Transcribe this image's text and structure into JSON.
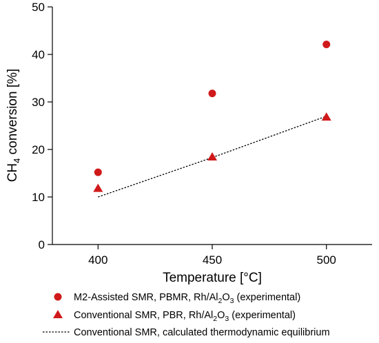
{
  "chart_data": {
    "type": "scatter",
    "xlabel": "Temperature [°C]",
    "ylabel": {
      "base": "CH",
      "sub": "4",
      "rest": " conversion [%]"
    },
    "xlim": [
      380,
      520
    ],
    "ylim": [
      0,
      50
    ],
    "x_ticks": [
      400,
      450,
      500
    ],
    "y_ticks": [
      0,
      10,
      20,
      30,
      40,
      50
    ],
    "grid": false,
    "legend_position": "bottom",
    "colors": {
      "marker": "#d0191b",
      "line": "#000000"
    },
    "series": [
      {
        "name": "M2-Assisted SMR, PBMR, Rh/Al2O3 (experimental)",
        "marker": "circle",
        "x": [
          400,
          450,
          500
        ],
        "y": [
          15.2,
          31.8,
          42.1
        ]
      },
      {
        "name": "Conventional SMR, PBR, Rh/Al2O3 (experimental)",
        "marker": "triangle",
        "x": [
          400,
          450,
          500
        ],
        "y": [
          11.8,
          18.4,
          26.8
        ]
      },
      {
        "name": "Conventional SMR, calculated thermodynamic equilibrium",
        "marker": "dotted-line",
        "x": [
          400,
          450,
          500
        ],
        "y": [
          10.0,
          18.3,
          27.0
        ]
      }
    ],
    "legend": [
      {
        "parts": [
          "M2-Assisted SMR, PBMR, Rh/Al",
          "2",
          "O",
          "3",
          " (experimental)"
        ]
      },
      {
        "parts": [
          "Conventional SMR, PBR, Rh/Al",
          "2",
          "O",
          "3",
          " (experimental)"
        ]
      },
      {
        "parts": [
          "Conventional SMR, calculated thermodynamic equilibrium"
        ]
      }
    ]
  }
}
